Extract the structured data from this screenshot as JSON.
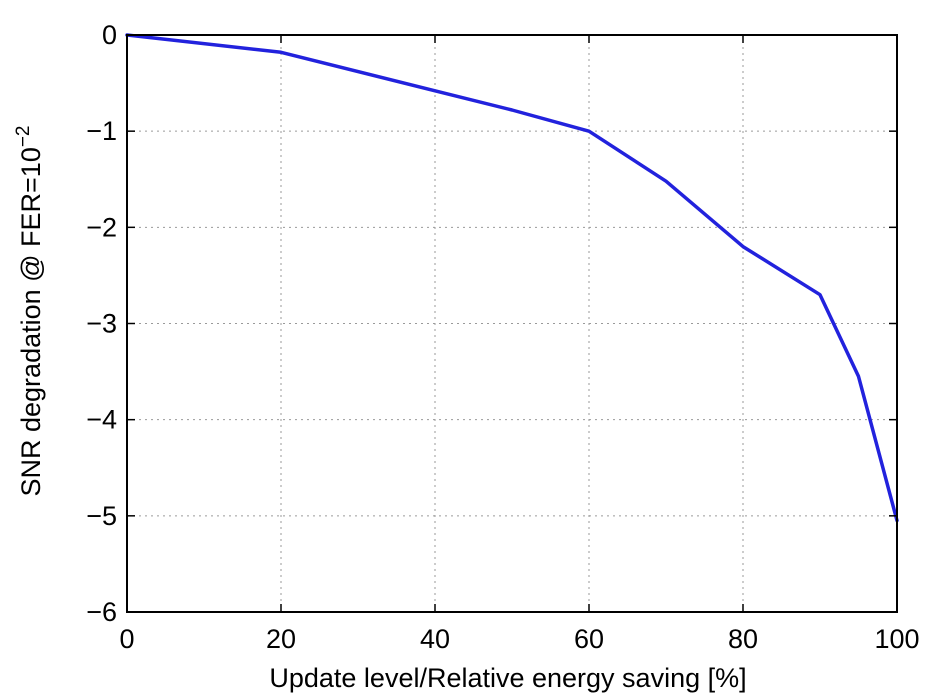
{
  "chart_data": {
    "type": "line",
    "title": "",
    "xlabel": "Update level/Relative energy saving [%]",
    "ylabel": {
      "prefix": "SNR degradation @ FER=10",
      "superscript": "−2"
    },
    "xlim": [
      0,
      100
    ],
    "ylim": [
      -6,
      0
    ],
    "x_ticks": [
      0,
      20,
      40,
      60,
      80,
      100
    ],
    "x_tick_labels": [
      "0",
      "20",
      "40",
      "60",
      "80",
      "100"
    ],
    "y_ticks": [
      0,
      -1,
      -2,
      -3,
      -4,
      -5,
      -6
    ],
    "y_tick_labels": [
      "0",
      "−1",
      "−2",
      "−3",
      "−4",
      "−5",
      "−6"
    ],
    "grid": true,
    "legend": "none",
    "series": [
      {
        "color": "#2222dd",
        "x": [
          0,
          20,
          40,
          50,
          60,
          70,
          80,
          90,
          95,
          100
        ],
        "y": [
          0,
          -0.18,
          -0.58,
          -0.78,
          -1.0,
          -1.52,
          -2.2,
          -2.7,
          -3.55,
          -5.05
        ]
      }
    ]
  }
}
